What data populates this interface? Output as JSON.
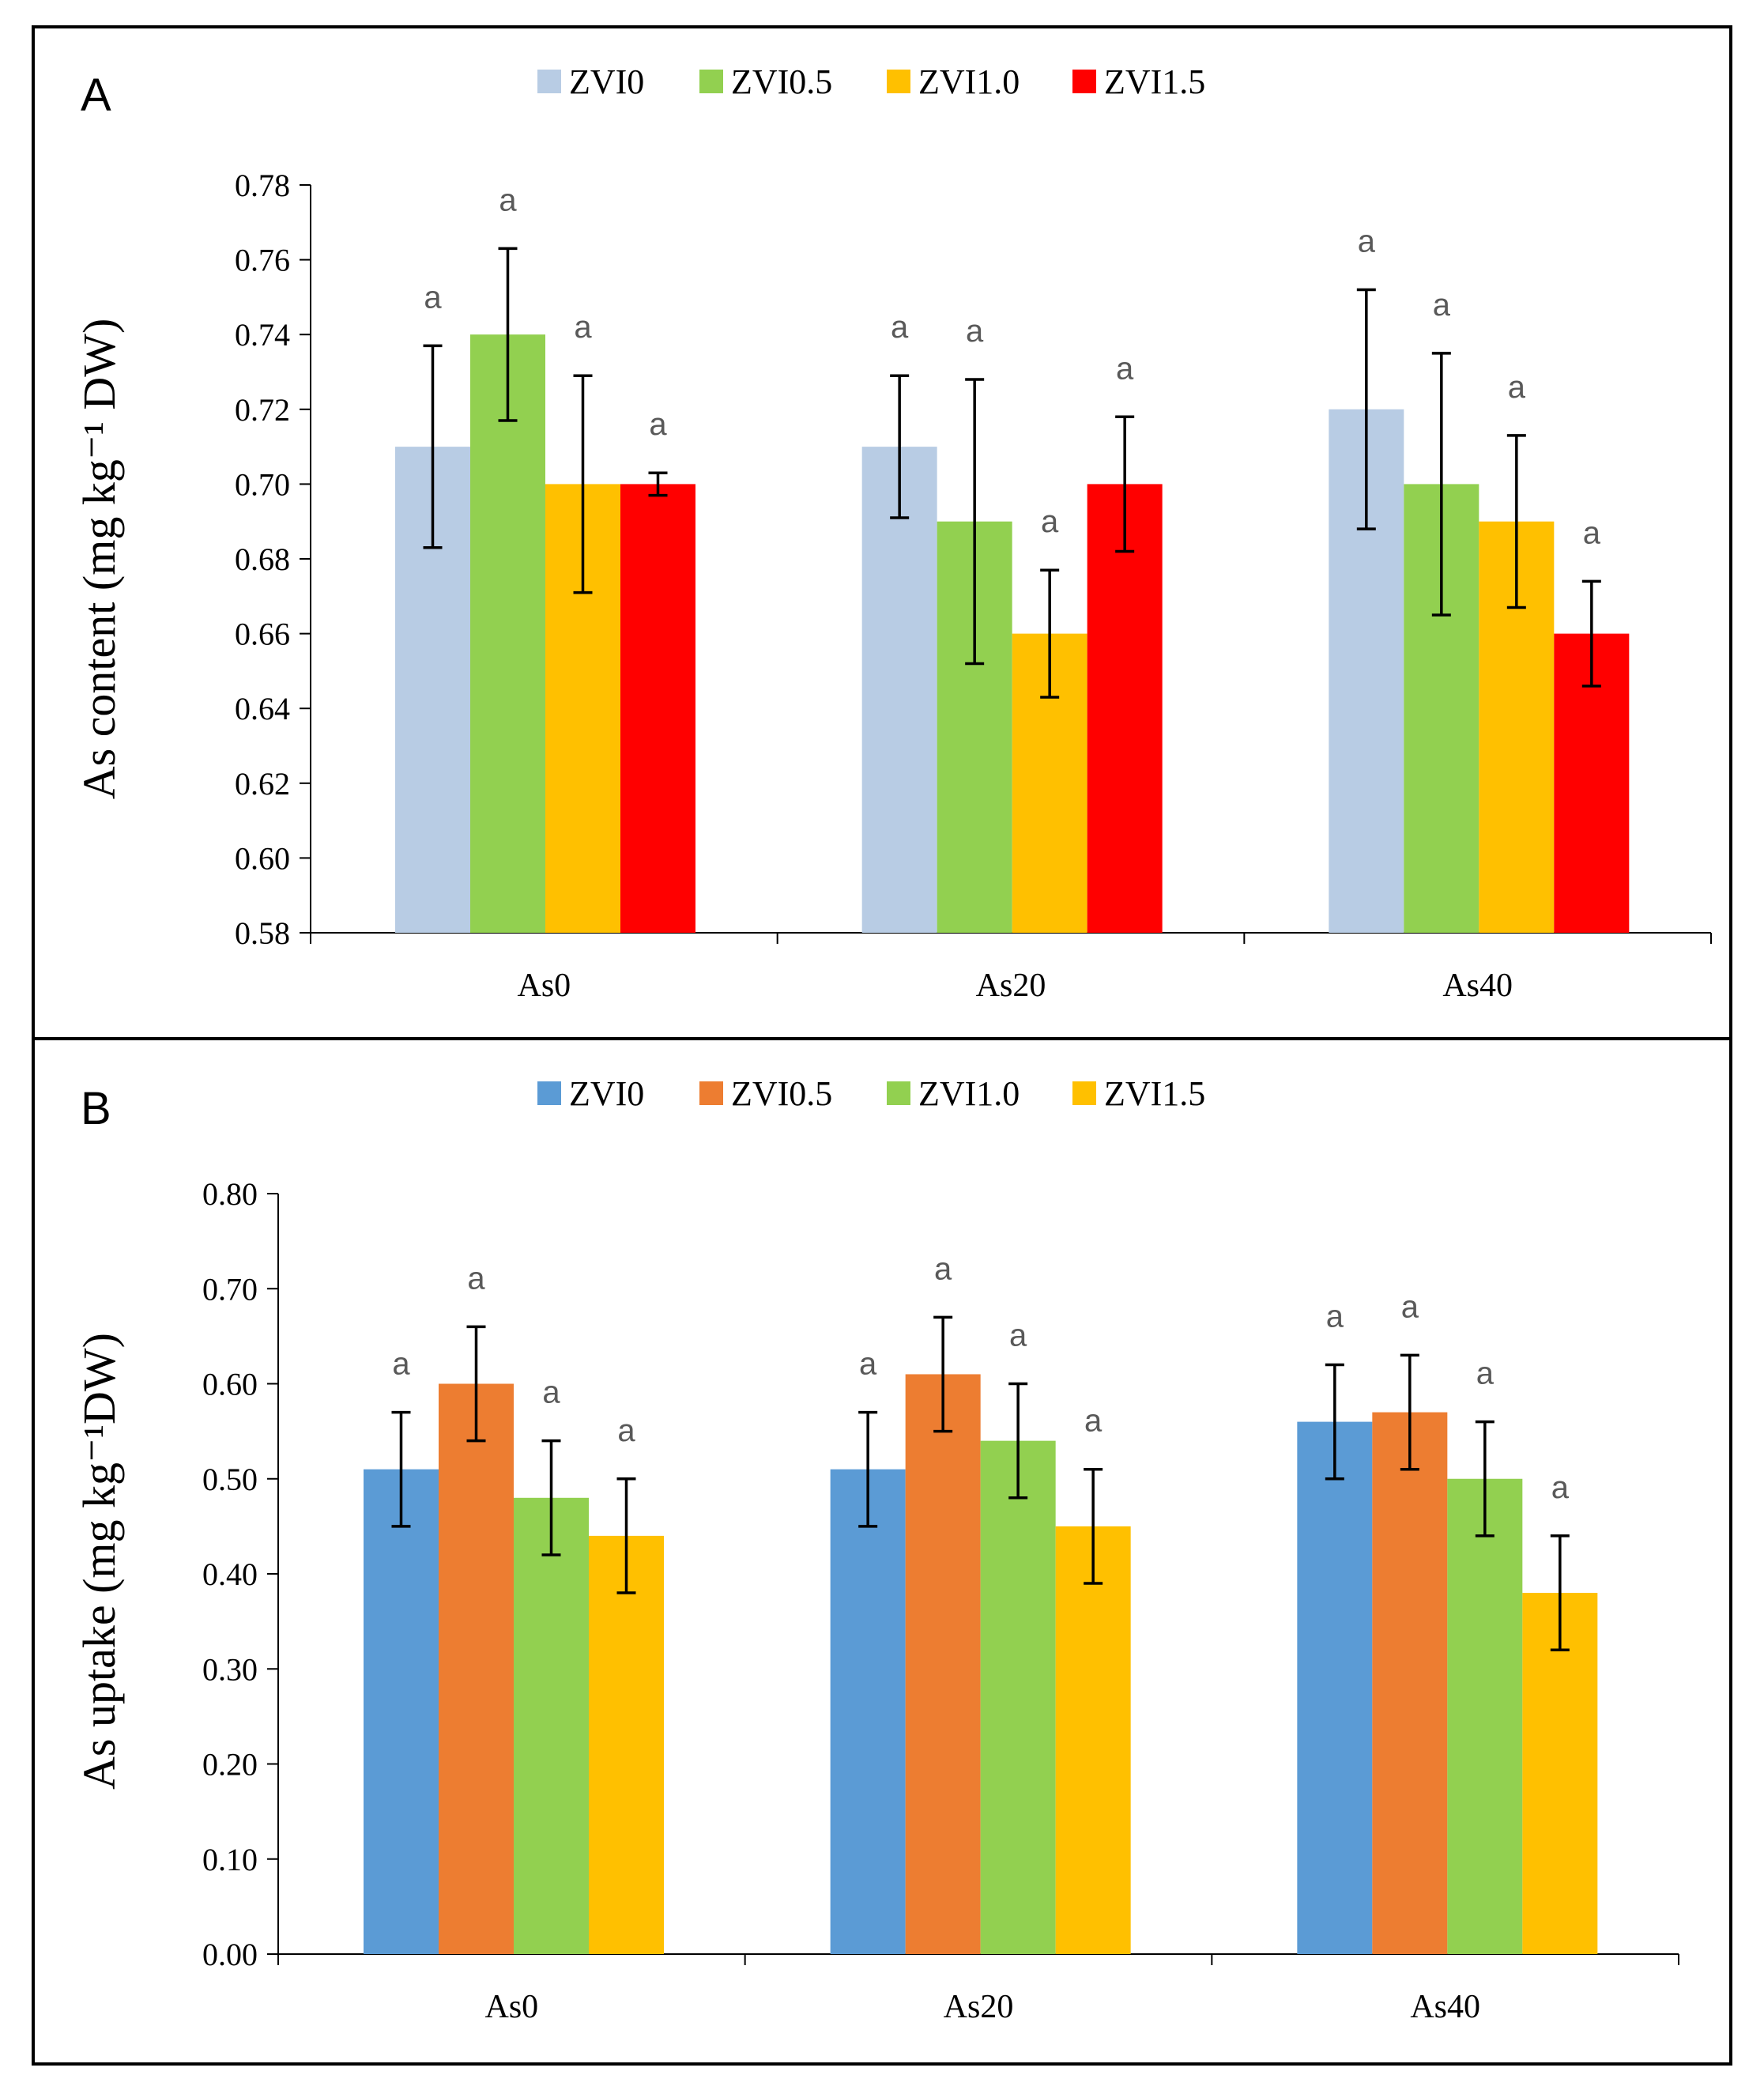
{
  "chart_data": [
    {
      "panel": "A",
      "type": "bar",
      "categories": [
        "As0",
        "As20",
        "As40"
      ],
      "ylabel": "As content (mg kg⁻¹ DW)",
      "ylim": [
        0.58,
        0.78
      ],
      "ytick_step": 0.02,
      "ytick_decimals": 2,
      "legend_position": "top",
      "series": [
        {
          "name": "ZVI0",
          "color": "#b8cce4",
          "values": [
            0.71,
            0.71,
            0.72
          ],
          "errors": [
            0.027,
            0.019,
            0.032
          ],
          "labels": [
            "a",
            "a",
            "a"
          ]
        },
        {
          "name": "ZVI0.5",
          "color": "#92d050",
          "values": [
            0.74,
            0.69,
            0.7
          ],
          "errors": [
            0.023,
            0.038,
            0.035
          ],
          "labels": [
            "a",
            "a",
            "a"
          ]
        },
        {
          "name": "ZVI1.0",
          "color": "#ffc000",
          "values": [
            0.7,
            0.66,
            0.69
          ],
          "errors": [
            0.029,
            0.017,
            0.023
          ],
          "labels": [
            "a",
            "a",
            "a"
          ]
        },
        {
          "name": "ZVI1.5",
          "color": "#ff0000",
          "values": [
            0.7,
            0.7,
            0.66
          ],
          "errors": [
            0.003,
            0.018,
            0.014
          ],
          "labels": [
            "a",
            "a",
            "a"
          ]
        }
      ]
    },
    {
      "panel": "B",
      "type": "bar",
      "categories": [
        "As0",
        "As20",
        "As40"
      ],
      "ylabel": "As uptake (mg kg⁻¹DW)",
      "ylim": [
        0.0,
        0.8
      ],
      "ytick_step": 0.1,
      "ytick_decimals": 2,
      "legend_position": "top",
      "series": [
        {
          "name": "ZVI0",
          "color": "#5b9bd5",
          "values": [
            0.51,
            0.51,
            0.56
          ],
          "errors": [
            0.06,
            0.06,
            0.06
          ],
          "labels": [
            "a",
            "a",
            "a"
          ]
        },
        {
          "name": "ZVI0.5",
          "color": "#ed7d31",
          "values": [
            0.6,
            0.61,
            0.57
          ],
          "errors": [
            0.06,
            0.06,
            0.06
          ],
          "labels": [
            "a",
            "a",
            "a"
          ]
        },
        {
          "name": "ZVI1.0",
          "color": "#92d050",
          "values": [
            0.48,
            0.54,
            0.5
          ],
          "errors": [
            0.06,
            0.06,
            0.06
          ],
          "labels": [
            "a",
            "a",
            "a"
          ]
        },
        {
          "name": "ZVI1.5",
          "color": "#ffc000",
          "values": [
            0.44,
            0.45,
            0.38
          ],
          "errors": [
            0.06,
            0.06,
            0.06
          ],
          "labels": [
            "a",
            "a",
            "a"
          ]
        }
      ]
    }
  ]
}
